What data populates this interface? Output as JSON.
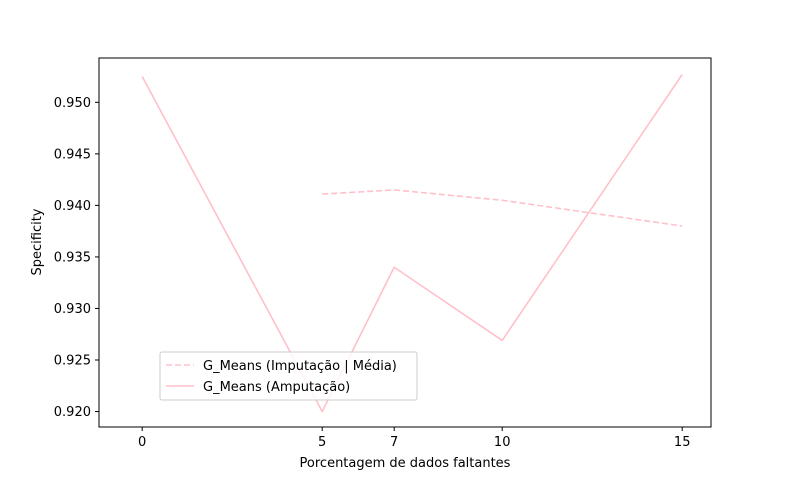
{
  "chart_data": {
    "type": "line",
    "title": "",
    "xlabel": "Porcentagem de dados faltantes",
    "ylabel": "Specificity",
    "xlim": [
      -1.2,
      15.8
    ],
    "ylim": [
      0.9185,
      0.9543
    ],
    "xticks": [
      0,
      5,
      7,
      10,
      15
    ],
    "yticks": [
      0.92,
      0.925,
      0.93,
      0.935,
      0.94,
      0.945,
      0.95
    ],
    "ytick_labels": [
      "0.920",
      "0.925",
      "0.930",
      "0.935",
      "0.940",
      "0.945",
      "0.950"
    ],
    "grid": false,
    "legend_position": "lower-left",
    "series": [
      {
        "name": "G_Means (Imputação | Média)",
        "style": "dashed",
        "color": "#ffc0cb",
        "x": [
          5,
          7,
          10,
          15
        ],
        "y": [
          0.9411,
          0.9415,
          0.9405,
          0.938
        ]
      },
      {
        "name": "G_Means (Amputação)",
        "style": "solid",
        "color": "#ffc0cb",
        "x": [
          0,
          5,
          7,
          10,
          15
        ],
        "y": [
          0.9525,
          0.92,
          0.934,
          0.9269,
          0.9527
        ]
      }
    ]
  }
}
